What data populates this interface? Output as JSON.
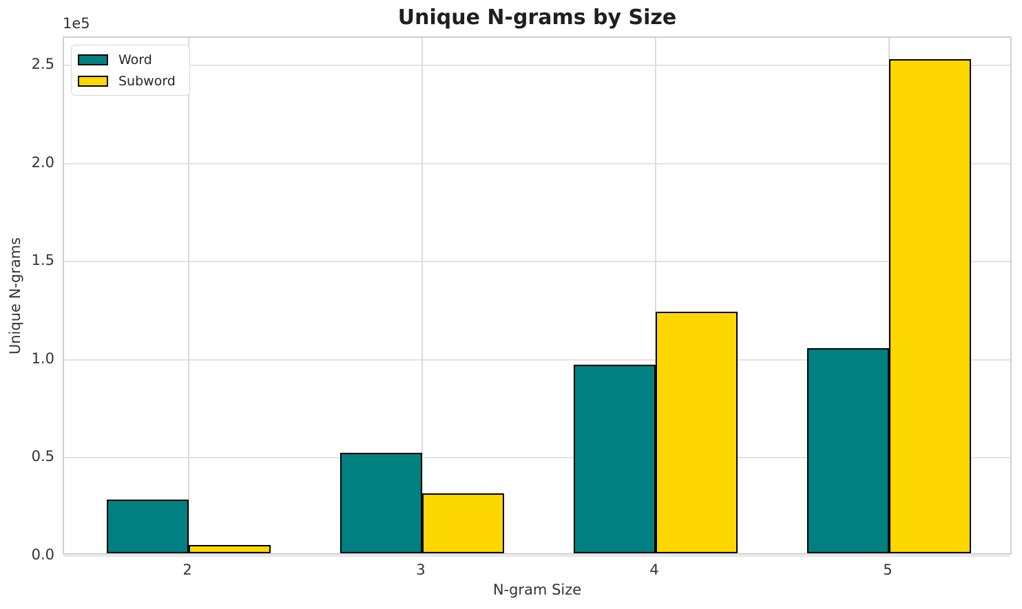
{
  "chart_data": {
    "type": "bar",
    "title": "Unique N-grams by Size",
    "xlabel": "N-gram Size",
    "ylabel": "Unique N-grams",
    "y_offset_label": "1e5",
    "categories": [
      "2",
      "3",
      "4",
      "5"
    ],
    "series": [
      {
        "name": "Word",
        "color": "#008080",
        "values": [
          27200,
          51100,
          96100,
          104400
        ]
      },
      {
        "name": "Subword",
        "color": "#FFD700",
        "values": [
          4100,
          30700,
          123000,
          251800
        ]
      }
    ],
    "ylim": [
      0,
      264200
    ],
    "yticks": [
      0,
      50000,
      100000,
      150000,
      200000,
      250000
    ],
    "ytick_labels": [
      "0.0",
      "0.5",
      "1.0",
      "1.5",
      "2.0",
      "2.5"
    ],
    "grid": true,
    "legend_position": "upper left",
    "bar_edge_color": "#000000"
  }
}
